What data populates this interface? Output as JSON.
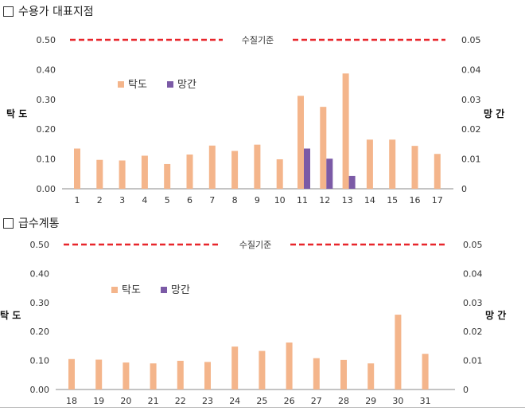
{
  "sections": [
    {
      "title": "수용가 대표지점"
    },
    {
      "title": "급수계통"
    }
  ],
  "colors": {
    "turbidity": "#f4b58b",
    "manganese": "#7b5aa6",
    "reference_line": "#e8262b"
  },
  "icons": {
    "section_marker": "checkbox-icon"
  },
  "chart_data": [
    {
      "type": "bar",
      "categories": [
        "1",
        "2",
        "3",
        "4",
        "5",
        "6",
        "7",
        "8",
        "9",
        "10",
        "11",
        "12",
        "13",
        "14",
        "15",
        "16",
        "17"
      ],
      "series": [
        {
          "name": "탁도",
          "axis": "left",
          "values": [
            0.135,
            0.097,
            0.095,
            0.111,
            0.083,
            0.115,
            0.145,
            0.127,
            0.148,
            0.099,
            0.312,
            0.275,
            0.387,
            0.165,
            0.165,
            0.144,
            0.117
          ]
        },
        {
          "name": "망간",
          "axis": "right",
          "values": [
            null,
            null,
            null,
            null,
            null,
            null,
            null,
            null,
            null,
            null,
            0.0135,
            0.0101,
            0.0043,
            null,
            null,
            null,
            null
          ]
        }
      ],
      "ylabel_left": "탁 도",
      "ylabel_right": "망 간",
      "ylim_left": [
        0,
        0.5
      ],
      "ylim_right": [
        0,
        0.05
      ],
      "yticks_left": [
        "0.00",
        "0.10",
        "0.20",
        "0.30",
        "0.40",
        "0.50"
      ],
      "yticks_right": [
        "0",
        "0.01",
        "0.02",
        "0.03",
        "0.04",
        "0.05"
      ],
      "reference_line": {
        "label": "수질기준",
        "value": 0.5
      },
      "legend": [
        "탁도",
        "망간"
      ],
      "grid": false
    },
    {
      "type": "bar",
      "categories": [
        "18",
        "19",
        "20",
        "21",
        "22",
        "23",
        "24",
        "25",
        "26",
        "27",
        "28",
        "29",
        "30",
        "31"
      ],
      "series": [
        {
          "name": "탁도",
          "axis": "left",
          "values": [
            0.105,
            0.103,
            0.093,
            0.09,
            0.099,
            0.095,
            0.148,
            0.133,
            0.162,
            0.108,
            0.102,
            0.09,
            0.258,
            0.123
          ]
        },
        {
          "name": "망간",
          "axis": "right",
          "values": [
            null,
            null,
            null,
            null,
            null,
            null,
            null,
            null,
            null,
            null,
            null,
            null,
            null,
            null
          ]
        }
      ],
      "ylabel_left": "탁 도",
      "ylabel_right": "망 간",
      "ylim_left": [
        0,
        0.5
      ],
      "ylim_right": [
        0,
        0.05
      ],
      "yticks_left": [
        "0.00",
        "0.10",
        "0.20",
        "0.30",
        "0.40",
        "0.50"
      ],
      "yticks_right": [
        "0",
        "0.01",
        "0.02",
        "0.03",
        "0.04",
        "0.05"
      ],
      "reference_line": {
        "label": "수질기준",
        "value": 0.5
      },
      "legend": [
        "탁도",
        "망간"
      ],
      "grid": false
    }
  ]
}
